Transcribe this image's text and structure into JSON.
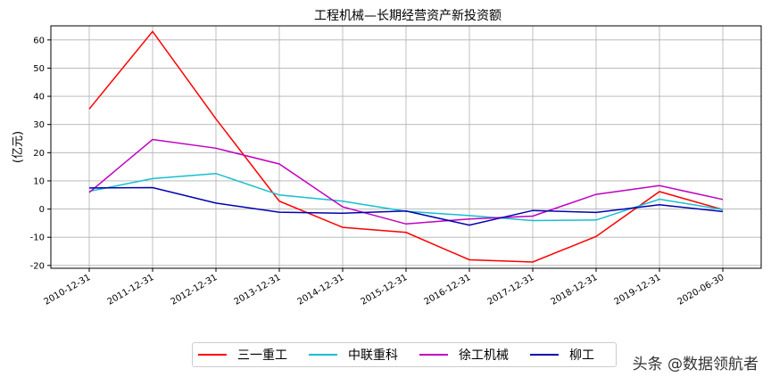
{
  "chart_data": {
    "type": "line",
    "title": "工程机械—长期经营资产新投资额",
    "xlabel": "",
    "ylabel": "(亿元)",
    "categories": [
      "2010-12-31",
      "2011-12-31",
      "2012-12-31",
      "2013-12-31",
      "2014-12-31",
      "2015-12-31",
      "2016-12-31",
      "2017-12-31",
      "2018-12-31",
      "2019-12-31",
      "2020-06-30"
    ],
    "ylim": [
      -21,
      65
    ],
    "yticks": [
      -20,
      -10,
      0,
      10,
      20,
      30,
      40,
      50,
      60
    ],
    "grid": true,
    "legend_position": "bottom",
    "series": [
      {
        "name": "三一重工",
        "color": "#ff0000",
        "values": [
          35.5,
          63,
          32,
          2.8,
          -6.5,
          -8.3,
          -18,
          -18.8,
          -9.7,
          6.2,
          -0.2
        ]
      },
      {
        "name": "中联重科",
        "color": "#17becf",
        "values": [
          6.3,
          10.8,
          12.6,
          5,
          2.8,
          -0.8,
          -2.3,
          -4.1,
          -3.9,
          3.5,
          -0.2
        ]
      },
      {
        "name": "徐工机械",
        "color": "#c000c0",
        "values": [
          5.9,
          24.7,
          21.6,
          16,
          0.8,
          -5.3,
          -3.5,
          -2.5,
          5.2,
          8.3,
          3.4
        ]
      },
      {
        "name": "柳工",
        "color": "#0000b0",
        "values": [
          7.5,
          7.6,
          2.1,
          -1.1,
          -1.5,
          -0.7,
          -5.7,
          -0.5,
          -1.2,
          1.5,
          -0.9
        ]
      }
    ]
  },
  "watermark": "头条 @数据领航者"
}
